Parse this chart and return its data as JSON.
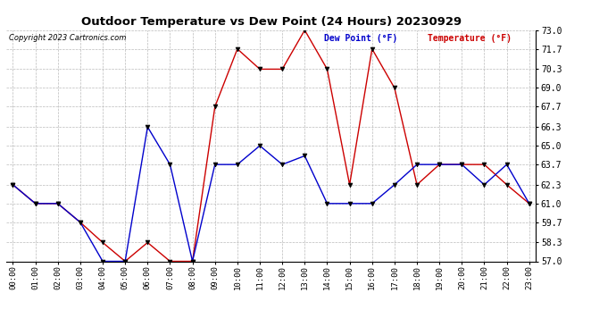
{
  "title": "Outdoor Temperature vs Dew Point (24 Hours) 20230929",
  "copyright": "Copyright 2023 Cartronics.com",
  "legend_dew": "Dew Point (°F)",
  "legend_temp": "Temperature (°F)",
  "x_labels": [
    "00:00",
    "01:00",
    "02:00",
    "03:00",
    "04:00",
    "05:00",
    "06:00",
    "07:00",
    "08:00",
    "09:00",
    "10:00",
    "11:00",
    "12:00",
    "13:00",
    "14:00",
    "15:00",
    "16:00",
    "17:00",
    "18:00",
    "19:00",
    "20:00",
    "21:00",
    "22:00",
    "23:00"
  ],
  "temperature": [
    62.3,
    61.0,
    61.0,
    59.7,
    58.3,
    57.0,
    58.3,
    57.0,
    57.0,
    67.7,
    71.7,
    70.3,
    70.3,
    73.0,
    70.3,
    62.3,
    71.7,
    69.0,
    62.3,
    63.7,
    63.7,
    63.7,
    62.3,
    61.0
  ],
  "dew_point": [
    62.3,
    61.0,
    61.0,
    59.7,
    57.0,
    57.0,
    66.3,
    63.7,
    57.0,
    63.7,
    63.7,
    65.0,
    63.7,
    64.3,
    61.0,
    61.0,
    61.0,
    62.3,
    63.7,
    63.7,
    63.7,
    62.3,
    63.7,
    61.0
  ],
  "ylim_min": 57.0,
  "ylim_max": 73.0,
  "yticks": [
    57.0,
    58.3,
    59.7,
    61.0,
    62.3,
    63.7,
    65.0,
    66.3,
    67.7,
    69.0,
    70.3,
    71.7,
    73.0
  ],
  "temp_color": "#cc0000",
  "dew_color": "#0000cc",
  "bg_color": "white",
  "grid_color": "#bbbbbb"
}
